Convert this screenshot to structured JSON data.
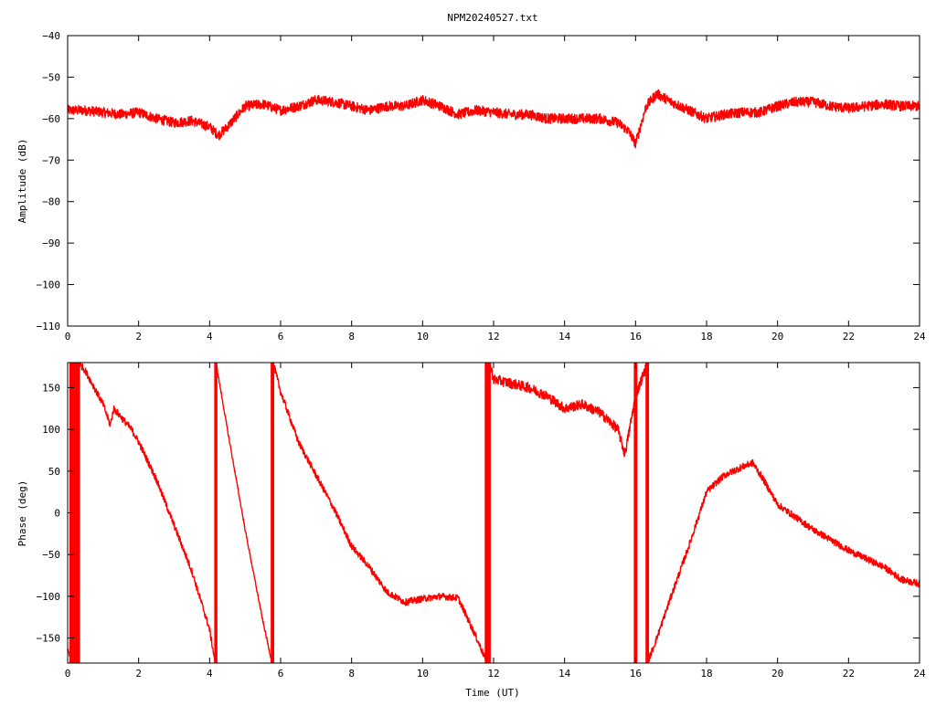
{
  "chart_data": [
    {
      "type": "line",
      "title": "NPM20240527.txt",
      "xlabel": "",
      "ylabel": "Amplitude (dB)",
      "xlim": [
        0,
        24
      ],
      "ylim": [
        -110,
        -40
      ],
      "x_ticks": [
        "0",
        "2",
        "4",
        "6",
        "8",
        "10",
        "12",
        "14",
        "16",
        "18",
        "20",
        "22",
        "24"
      ],
      "y_ticks": [
        "-40",
        "-50",
        "-60",
        "-70",
        "-80",
        "-90",
        "-100",
        "-110"
      ],
      "grid": false,
      "color": "#ff0000",
      "series": [
        {
          "x": [
            0,
            0.5,
            1,
            1.5,
            2,
            2.5,
            3,
            3.5,
            4,
            4.25,
            4.5,
            5,
            5.5,
            6,
            6.5,
            7,
            7.5,
            8,
            8.5,
            9,
            9.5,
            10,
            10.5,
            11,
            11.5,
            12,
            12.5,
            13,
            13.5,
            14,
            14.5,
            15,
            15.5,
            15.8,
            16,
            16.3,
            16.6,
            17,
            17.5,
            18,
            18.5,
            19,
            19.5,
            20,
            20.5,
            21,
            21.5,
            22,
            22.5,
            23,
            23.5,
            24
          ],
          "y": [
            -58,
            -58,
            -58.5,
            -59,
            -58.5,
            -60,
            -61,
            -60.5,
            -62,
            -64,
            -62,
            -57,
            -56.5,
            -58,
            -57,
            -55.5,
            -56,
            -57,
            -58,
            -57,
            -57,
            -55.5,
            -57,
            -59,
            -58,
            -58.5,
            -59,
            -59,
            -60,
            -60,
            -60,
            -60,
            -61,
            -63,
            -66,
            -57,
            -54,
            -56,
            -58,
            -60,
            -59,
            -58.5,
            -58.5,
            -57,
            -56,
            -56,
            -57,
            -57.5,
            -57,
            -56.5,
            -57,
            -57
          ],
          "noise": 1.2
        }
      ]
    },
    {
      "type": "line",
      "title": "",
      "xlabel": "Time (UT)",
      "ylabel": "Phase (deg)",
      "xlim": [
        0,
        24
      ],
      "ylim": [
        -180,
        180
      ],
      "x_ticks": [
        "0",
        "2",
        "4",
        "6",
        "8",
        "10",
        "12",
        "14",
        "16",
        "18",
        "20",
        "22",
        "24"
      ],
      "y_ticks": [
        "150",
        "100",
        "50",
        "0",
        "-50",
        "-100",
        "-150"
      ],
      "grid": false,
      "color": "#ff0000",
      "series": [
        {
          "x": [
            0,
            0.08,
            0.12
          ],
          "y": [
            -165,
            -172,
            -178
          ],
          "noise": 3
        },
        {
          "x": [
            0.35,
            0.5,
            1,
            1.2,
            1.3,
            1.5,
            1.8,
            2,
            2.5,
            3,
            3.5,
            4,
            4.15
          ],
          "y": [
            178,
            170,
            130,
            105,
            125,
            115,
            100,
            85,
            40,
            -15,
            -70,
            -140,
            -178
          ],
          "noise": 4
        },
        {
          "x": [
            4.2,
            4.5,
            5,
            5.5,
            5.75
          ],
          "y": [
            175,
            100,
            -20,
            -130,
            -178
          ],
          "noise": 2
        },
        {
          "x": [
            5.8,
            6,
            6.5,
            7,
            7.5,
            8,
            8.5,
            9,
            9.5,
            10,
            10.5,
            11,
            11.5,
            11.8
          ],
          "y": [
            178,
            145,
            85,
            45,
            5,
            -40,
            -65,
            -95,
            -107,
            -103,
            -100,
            -102,
            -148,
            -178
          ],
          "noise": 4
        },
        {
          "x": [
            11.9,
            12,
            12.5,
            13,
            13.5,
            14,
            14.5,
            15,
            15.5,
            15.7,
            16,
            16.3
          ],
          "y": [
            178,
            160,
            155,
            150,
            140,
            125,
            130,
            120,
            100,
            70,
            140,
            175
          ],
          "noise": 6
        },
        {
          "x": [
            16.35,
            16.6,
            17,
            17.5,
            18,
            18.5,
            19,
            19.3,
            19.6,
            20,
            20.5,
            21,
            22,
            23,
            23.5,
            24
          ],
          "y": [
            -178,
            -150,
            -100,
            -40,
            25,
            45,
            55,
            60,
            40,
            10,
            -5,
            -20,
            -45,
            -65,
            -80,
            -85
          ],
          "noise": 4
        }
      ],
      "wrap_segments": [
        {
          "x": [
            0.05,
            0.35
          ],
          "y": [
            -180,
            180
          ]
        },
        {
          "x": [
            4.13,
            4.22
          ],
          "y": [
            -180,
            180
          ]
        },
        {
          "x": [
            5.72,
            5.82
          ],
          "y": [
            -180,
            180
          ]
        },
        {
          "x": [
            11.75,
            11.92
          ],
          "y": [
            -180,
            180
          ]
        },
        {
          "x": [
            15.95,
            16.05
          ],
          "y": [
            -180,
            180
          ]
        },
        {
          "x": [
            16.28,
            16.38
          ],
          "y": [
            -180,
            180
          ]
        }
      ]
    }
  ]
}
